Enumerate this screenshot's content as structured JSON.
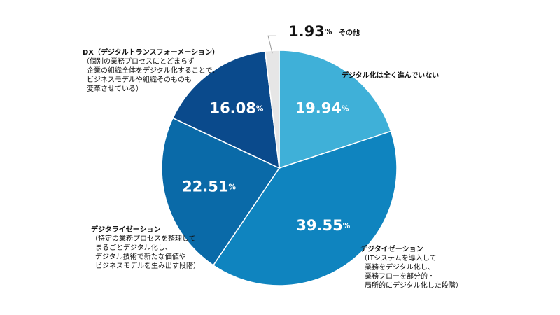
{
  "chart_data": {
    "type": "pie",
    "categories": [
      "デジタル化は全く進んでいない",
      "デジタイゼーション",
      "デジタライゼーション",
      "DX（デジタルトランスフォーメーション）",
      "その他"
    ],
    "descriptions": [
      null,
      [
        "（ITシステムを導入して",
        "業務をデジタル化し、",
        "業務フローを部分的・",
        "局所的にデジタル化した段階）"
      ],
      [
        "（特定の業務プロセスを整理して",
        "まるごとデジタル化し、",
        "デジタル技術で新たな価値や",
        "ビジネスモデルを生み出す段階）"
      ],
      [
        "（個別の業務プロセスにとどまらず",
        "企業の組織全体をデジタル化することで、",
        "ビジネスモデルや組織そのものも",
        "変革させている）"
      ],
      null
    ],
    "values": [
      19.94,
      39.55,
      22.51,
      16.08,
      1.93
    ],
    "value_labels": [
      "19.94%",
      "39.55%",
      "22.51%",
      "16.08%",
      "1.93%"
    ],
    "colors": [
      "#3fb0d8",
      "#0f84bf",
      "#0a6aa8",
      "#0a4a8c",
      "#e6e6e6"
    ]
  }
}
